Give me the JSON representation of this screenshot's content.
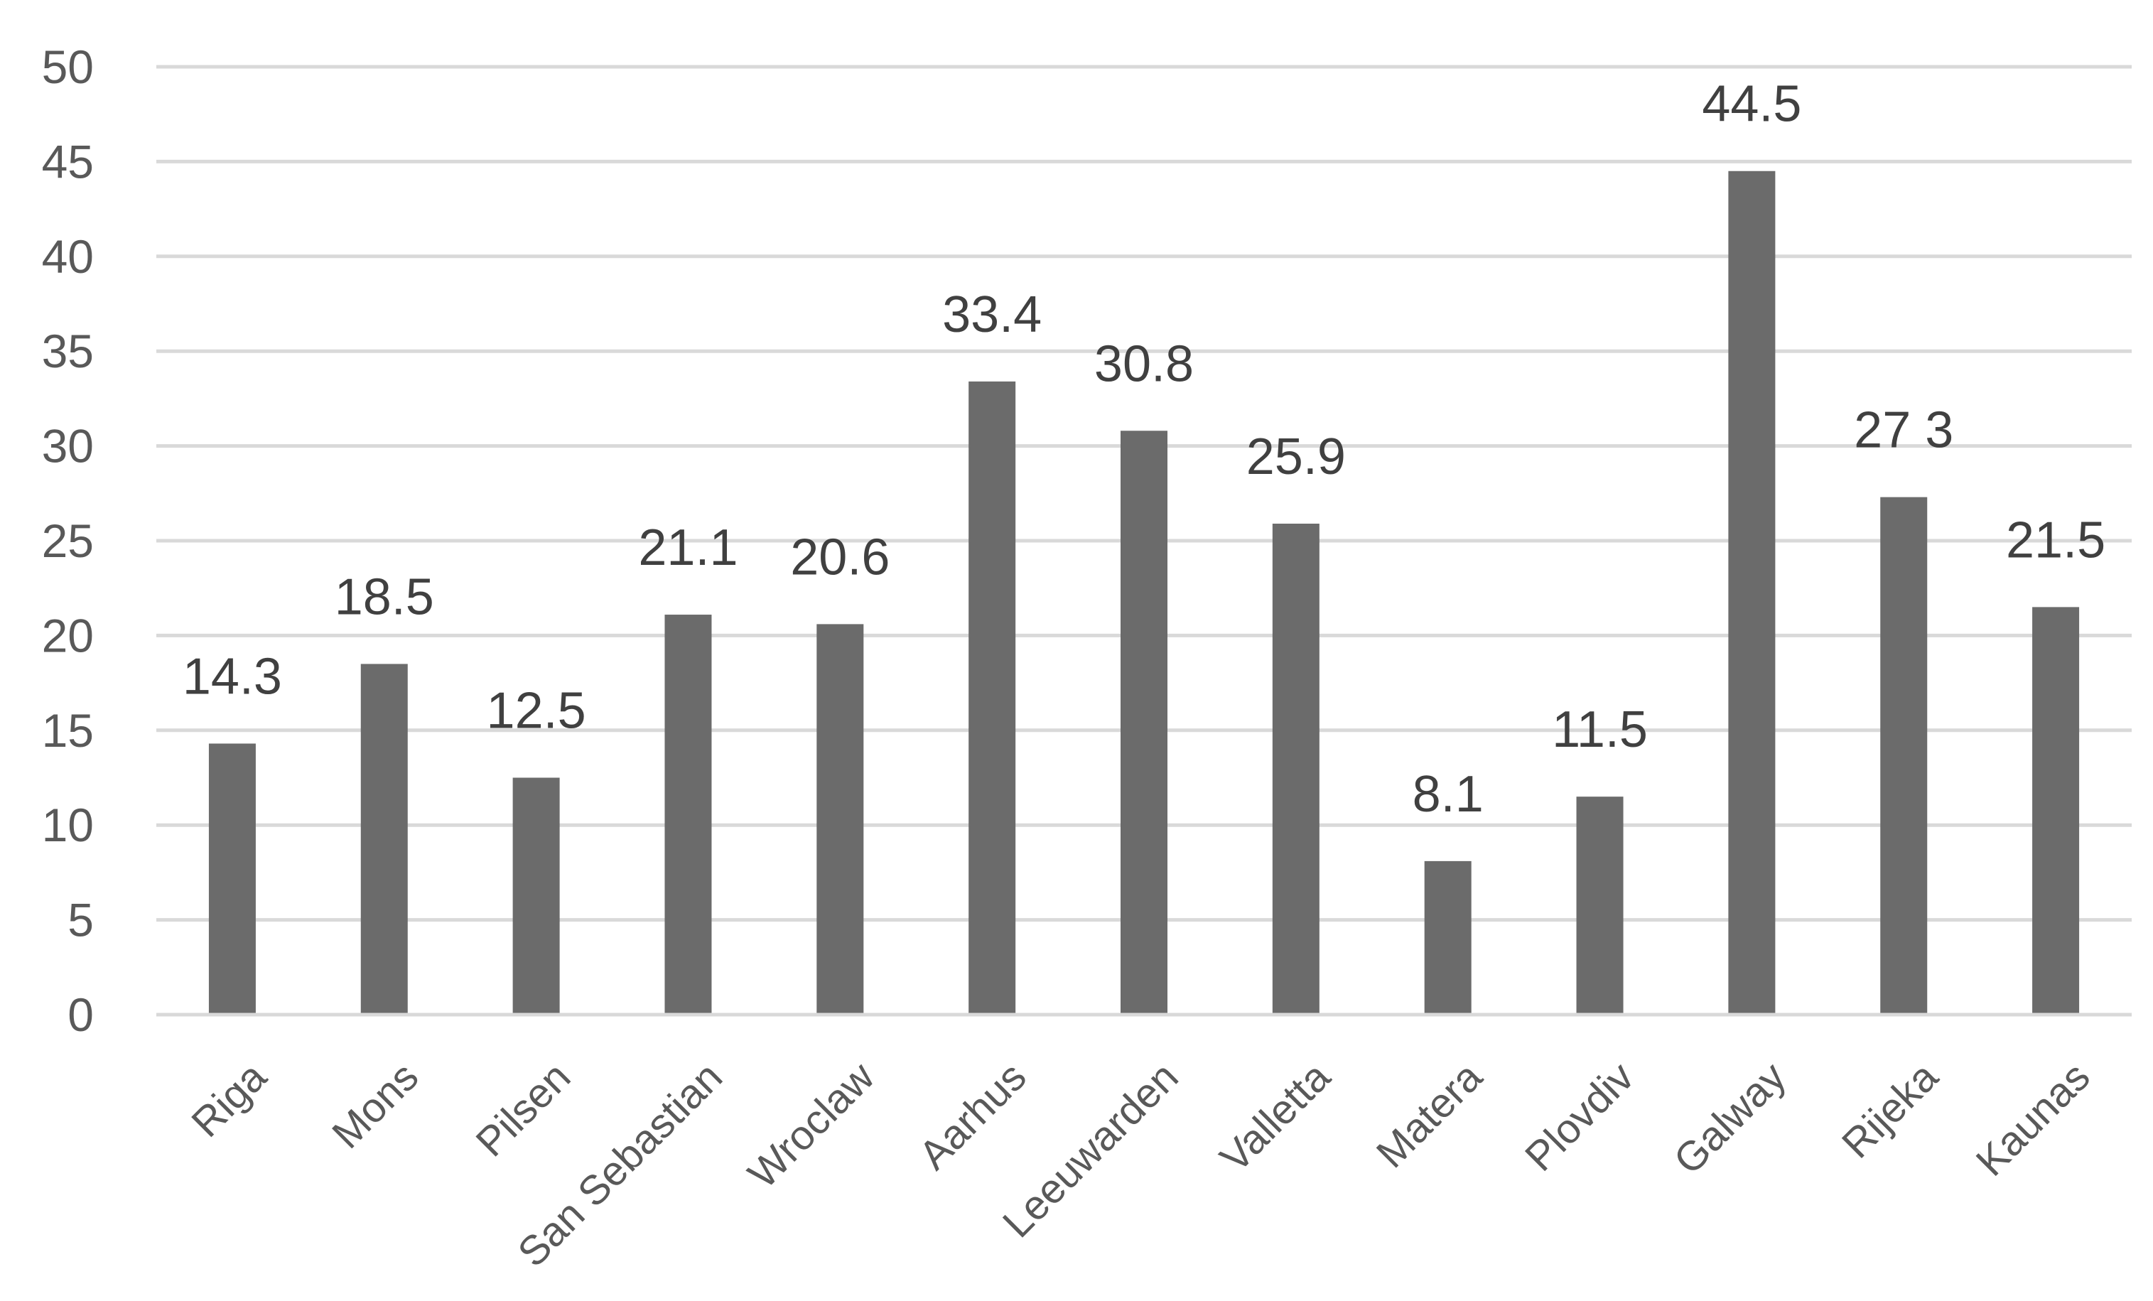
{
  "chart_data": {
    "type": "bar",
    "categories": [
      "Riga",
      "Mons",
      "Pilsen",
      "San Sebastian",
      "Wroclaw",
      "Aarhus",
      "Leeuwarden",
      "Valletta",
      "Matera",
      "Plovdiv",
      "Galway",
      "Rijeka",
      "Kaunas"
    ],
    "values": [
      14.3,
      18.5,
      12.5,
      21.1,
      20.6,
      33.4,
      30.8,
      25.9,
      8.1,
      11.5,
      44.5,
      27.3,
      21.5
    ],
    "data_labels": [
      "14.3",
      "18.5",
      "12.5",
      "21.1",
      "20.6",
      "33.4",
      "30.8",
      "25.9",
      "8.1",
      "11.5",
      "44.5",
      "27 3",
      "21.5"
    ],
    "y_ticks": [
      "0",
      "5",
      "10",
      "15",
      "20",
      "25",
      "30",
      "35",
      "40",
      "45",
      "50"
    ],
    "title": "",
    "xlabel": "",
    "ylabel": "",
    "ylim": [
      0,
      50
    ],
    "grid": true,
    "legend": "none",
    "colors": {
      "bar": "#6b6b6b",
      "grid": "#d9d9d9",
      "tick_text": "#595959",
      "label_text": "#404040"
    }
  }
}
